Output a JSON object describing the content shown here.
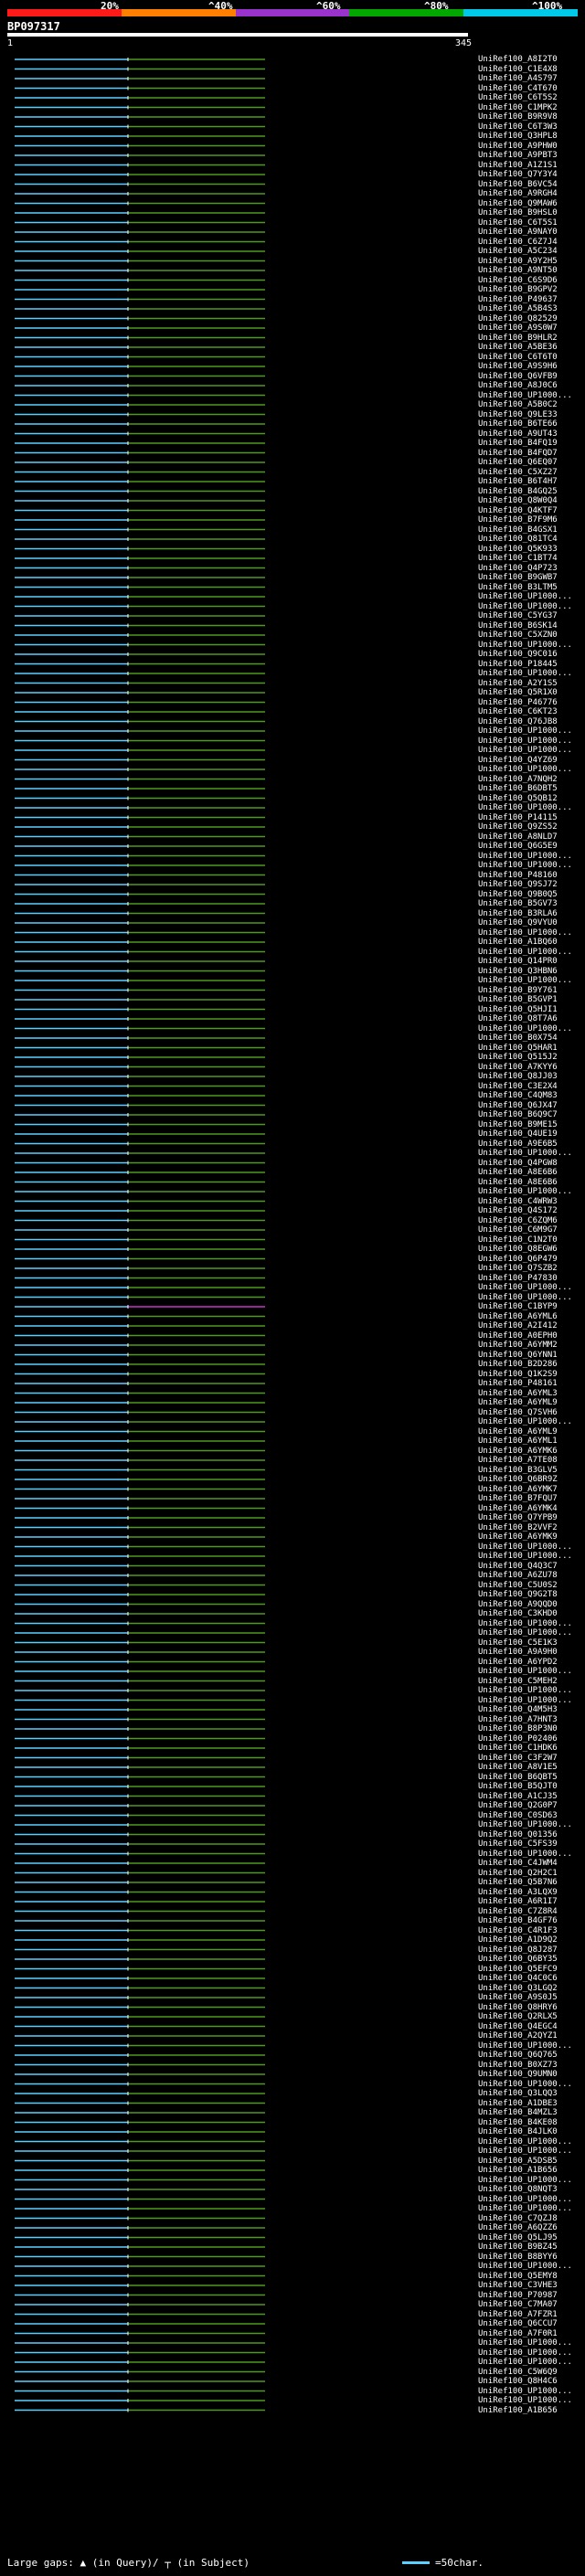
{
  "scale": {
    "labels": [
      "20%",
      "^40%",
      "^60%",
      "^80%",
      "^100%"
    ],
    "colors": [
      "#ff1a1a",
      "#ff7f00",
      "#9933cc",
      "#00a800",
      "#00c8e8"
    ]
  },
  "query": {
    "id": "BP097317",
    "start": "1",
    "end": "345"
  },
  "colors": {
    "cyan": "#5bd0ff",
    "green": "#4f9a1f",
    "magenta": "#cc33cc",
    "white": "#ffffff"
  },
  "hits": [
    "UniRef100_A8I2T0",
    "UniRef100_C1E4X8",
    "UniRef100_A4S797",
    "UniRef100_C4T670",
    "UniRef100_C6T5S2",
    "UniRef100_C1MPK2",
    "UniRef100_B9R9V8",
    "UniRef100_C6T3W3",
    "UniRef100_Q3HPL8",
    "UniRef100_A9PHW0",
    "UniRef100_A9PBT3",
    "UniRef100_A1Z1S1",
    "UniRef100_Q7Y3Y4",
    "UniRef100_B6VC54",
    "UniRef100_A9RGH4",
    "UniRef100_Q9MAW6",
    "UniRef100_B9HSL0",
    "UniRef100_C6T5S1",
    "UniRef100_A9NAY0",
    "UniRef100_C6Z7J4",
    "UniRef100_A5C234",
    "UniRef100_A9Y2H5",
    "UniRef100_A9NT50",
    "UniRef100_C6S9D6",
    "UniRef100_B9GPV2",
    "UniRef100_P49637",
    "UniRef100_A5B4S3",
    "UniRef100_Q82529",
    "UniRef100_A9S0W7",
    "UniRef100_B9HLR2",
    "UniRef100_A5BE36",
    "UniRef100_C6T6T0",
    "UniRef100_A9S9H6",
    "UniRef100_Q6VFB9",
    "UniRef100_A8J0C6",
    "UniRef100_UP1000...",
    "UniRef100_A5B0C2",
    "UniRef100_Q9LE33",
    "UniRef100_B6TE66",
    "UniRef100_A9UT43",
    "UniRef100_B4FQ19",
    "UniRef100_B4FQD7",
    "UniRef100_Q6EQ07",
    "UniRef100_C5XZ27",
    "UniRef100_B6T4H7",
    "UniRef100_B4GQ25",
    "UniRef100_Q8W0Q4",
    "UniRef100_Q4KTF7",
    "UniRef100_B7F9M6",
    "UniRef100_B4GSX1",
    "UniRef100_Q81TC4",
    "UniRef100_Q5K933",
    "UniRef100_C1BT74",
    "UniRef100_Q4P723",
    "UniRef100_B9GWB7",
    "UniRef100_B3LTM5",
    "UniRef100_UP1000...",
    "UniRef100_UP1000...",
    "UniRef100_C5YG37",
    "UniRef100_B6SK14",
    "UniRef100_C5XZN0",
    "UniRef100_UP1000...",
    "UniRef100_Q9C016",
    "UniRef100_P18445",
    "UniRef100_UP1000...",
    "UniRef100_A2Y1S5",
    "UniRef100_Q5R1X0",
    "UniRef100_P46776",
    "UniRef100_C6KT23",
    "UniRef100_Q76JB8",
    "UniRef100_UP1000...",
    "UniRef100_UP1000...",
    "UniRef100_UP1000...",
    "UniRef100_Q4YZ69",
    "UniRef100_UP1000...",
    "UniRef100_A7NQH2",
    "UniRef100_B6DBT5",
    "UniRef100_Q5QB12",
    "UniRef100_UP1000...",
    "UniRef100_P14115",
    "UniRef100_Q9ZS52",
    "UniRef100_A8NLD7",
    "UniRef100_Q6G5E9",
    "UniRef100_UP1000...",
    "UniRef100_UP1000...",
    "UniRef100_P48160",
    "UniRef100_Q9SJ72",
    "UniRef100_Q9B0Q5",
    "UniRef100_B5GV73",
    "UniRef100_B3RLA6",
    "UniRef100_Q9VYU0",
    "UniRef100_UP1000...",
    "UniRef100_A1BQ60",
    "UniRef100_UP1000...",
    "UniRef100_Q14PR0",
    "UniRef100_Q3HBN6",
    "UniRef100_UP1000...",
    "UniRef100_B9Y761",
    "UniRef100_B5GVP1",
    "UniRef100_Q5HJI1",
    "UniRef100_Q8T7A6",
    "UniRef100_UP1000...",
    "UniRef100_B0X754",
    "UniRef100_Q5HAR1",
    "UniRef100_Q515J2",
    "UniRef100_A7KYY6",
    "UniRef100_Q8JJ03",
    "UniRef100_C3E2X4",
    "UniRef100_C4QM83",
    "UniRef100_Q6JX47",
    "UniRef100_B6Q9C7",
    "UniRef100_B9ME15",
    "UniRef100_Q4UE19",
    "UniRef100_A9E6B5",
    "UniRef100_UP1000...",
    "UniRef100_Q4PGW8",
    "UniRef100_A8E6B6",
    "UniRef100_A8E6B6",
    "UniRef100_UP1000...",
    "UniRef100_C4WRW3",
    "UniRef100_Q4S172",
    "UniRef100_C6ZQM6",
    "UniRef100_C6M9G7",
    "UniRef100_C1N2T0",
    "UniRef100_Q8EGW6",
    "UniRef100_Q6P479",
    "UniRef100_Q7SZB2",
    "UniRef100_P47830",
    "UniRef100_UP1000...",
    "UniRef100_UP1000...",
    "UniRef100_C1BYP9",
    "UniRef100_A6YML6",
    "UniRef100_A2I412",
    "UniRef100_A0EPH0",
    "UniRef100_A6YMM2",
    "UniRef100_Q6YNN1",
    "UniRef100_B2D286",
    "UniRef100_Q1K2S9",
    "UniRef100_P48161",
    "UniRef100_A6YML3",
    "UniRef100_A6YML9",
    "UniRef100_Q7SVH6",
    "UniRef100_UP1000...",
    "UniRef100_A6YML9",
    "UniRef100_A6YML1",
    "UniRef100_A6YMK6",
    "UniRef100_A7TE08",
    "UniRef100_B3GLV5",
    "UniRef100_Q6BR9Z",
    "UniRef100_A6YMK7",
    "UniRef100_B7FQU7",
    "UniRef100_A6YMK4",
    "UniRef100_Q7YPB9",
    "UniRef100_B2VVF2",
    "UniRef100_A6YMK9",
    "UniRef100_UP1000...",
    "UniRef100_UP1000...",
    "UniRef100_Q4Q3C7",
    "UniRef100_A6ZU78",
    "UniRef100_C5U0S2",
    "UniRef100_Q9G2T8",
    "UniRef100_A9QQD0",
    "UniRef100_C3KHD0",
    "UniRef100_UP1000...",
    "UniRef100_UP1000...",
    "UniRef100_C5E1K3",
    "UniRef100_A9A9H0",
    "UniRef100_A6YPD2",
    "UniRef100_UP1000...",
    "UniRef100_C5MEH2",
    "UniRef100_UP1000...",
    "UniRef100_UP1000...",
    "UniRef100_Q4M5H3",
    "UniRef100_A7HNT3",
    "UniRef100_B8P3N0",
    "UniRef100_P02406",
    "UniRef100_C1HDK6",
    "UniRef100_C3F2W7",
    "UniRef100_A8V1E5",
    "UniRef100_B6QBT5",
    "UniRef100_B5QJT0",
    "UniRef100_A1CJ35",
    "UniRef100_Q2G0P7",
    "UniRef100_C0SD63",
    "UniRef100_UP1000...",
    "UniRef100_Q01356",
    "UniRef100_C5FS39",
    "UniRef100_UP1000...",
    "UniRef100_C4JWM4",
    "UniRef100_Q2H2C1",
    "UniRef100_Q5B7N6",
    "UniRef100_A3LQX9",
    "UniRef100_A6R1I7",
    "UniRef100_C7Z8R4",
    "UniRef100_B4GF76",
    "UniRef100_C4R1F3",
    "UniRef100_A1D9Q2",
    "UniRef100_Q8J287",
    "UniRef100_Q6BY35",
    "UniRef100_Q5EFC9",
    "UniRef100_Q4C0C6",
    "UniRef100_Q3LGQ2",
    "UniRef100_A9S0J5",
    "UniRef100_Q8HRY6",
    "UniRef100_Q2RLX5",
    "UniRef100_Q4EGC4",
    "UniRef100_A2QYZ1",
    "UniRef100_UP1000...",
    "UniRef100_Q6Q765",
    "UniRef100_B0XZ73",
    "UniRef100_Q9UMN0",
    "UniRef100_UP1000...",
    "UniRef100_Q3LQQ3",
    "UniRef100_A1DBE3",
    "UniRef100_B4MZL3",
    "UniRef100_B4KE08",
    "UniRef100_B4JLK0",
    "UniRef100_UP1000...",
    "UniRef100_UP1000...",
    "UniRef100_A5DSB5",
    "UniRef100_A1B656",
    "UniRef100_UP1000...",
    "UniRef100_Q8NQT3",
    "UniRef100_UP1000...",
    "UniRef100_UP1000...",
    "UniRef100_C7QZJ8",
    "UniRef100_A6QZZ6",
    "UniRef100_Q5LJ95",
    "UniRef100_B9BZ45",
    "UniRef100_B8BYY6",
    "UniRef100_UP1000...",
    "UniRef100_Q5EMY8",
    "UniRef100_C3VHE3",
    "UniRef100_P70987",
    "UniRef100_C7MA07",
    "UniRef100_A7FZR1",
    "UniRef100_Q6CCU7",
    "UniRef100_A7F0R1",
    "UniRef100_UP1000...",
    "UniRef100_UP1000...",
    "UniRef100_UP1000...",
    "UniRef100_C5W6Q9",
    "UniRef100_Q8H4C6",
    "UniRef100_UP1000...",
    "UniRef100_UP1000...",
    "UniRef100_A1B656"
  ],
  "footer": {
    "large_gaps_label": "Large gaps:",
    "in_query_label": "(in Query)/",
    "in_subject_label": "(in Subject)",
    "scale_label": "=50char."
  }
}
